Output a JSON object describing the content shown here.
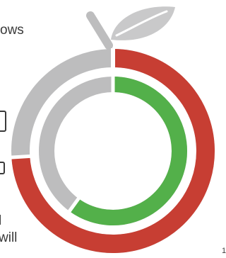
{
  "text_fragments": {
    "line_1": "ows",
    "line_2": "l",
    "line_3": "will",
    "line_4": "1"
  },
  "ring_outer": {
    "progress": 0.74,
    "progress_color": "#c73e33",
    "track_color": "#bdbdbe"
  },
  "ring_inner": {
    "progress": 0.6,
    "progress_color": "#53b04a",
    "track_color": "#bdbdbe"
  },
  "leaf": {
    "fill": "#c9c9ca",
    "stem_color": "#bdbdbe",
    "vein_color": "#ffffff"
  }
}
